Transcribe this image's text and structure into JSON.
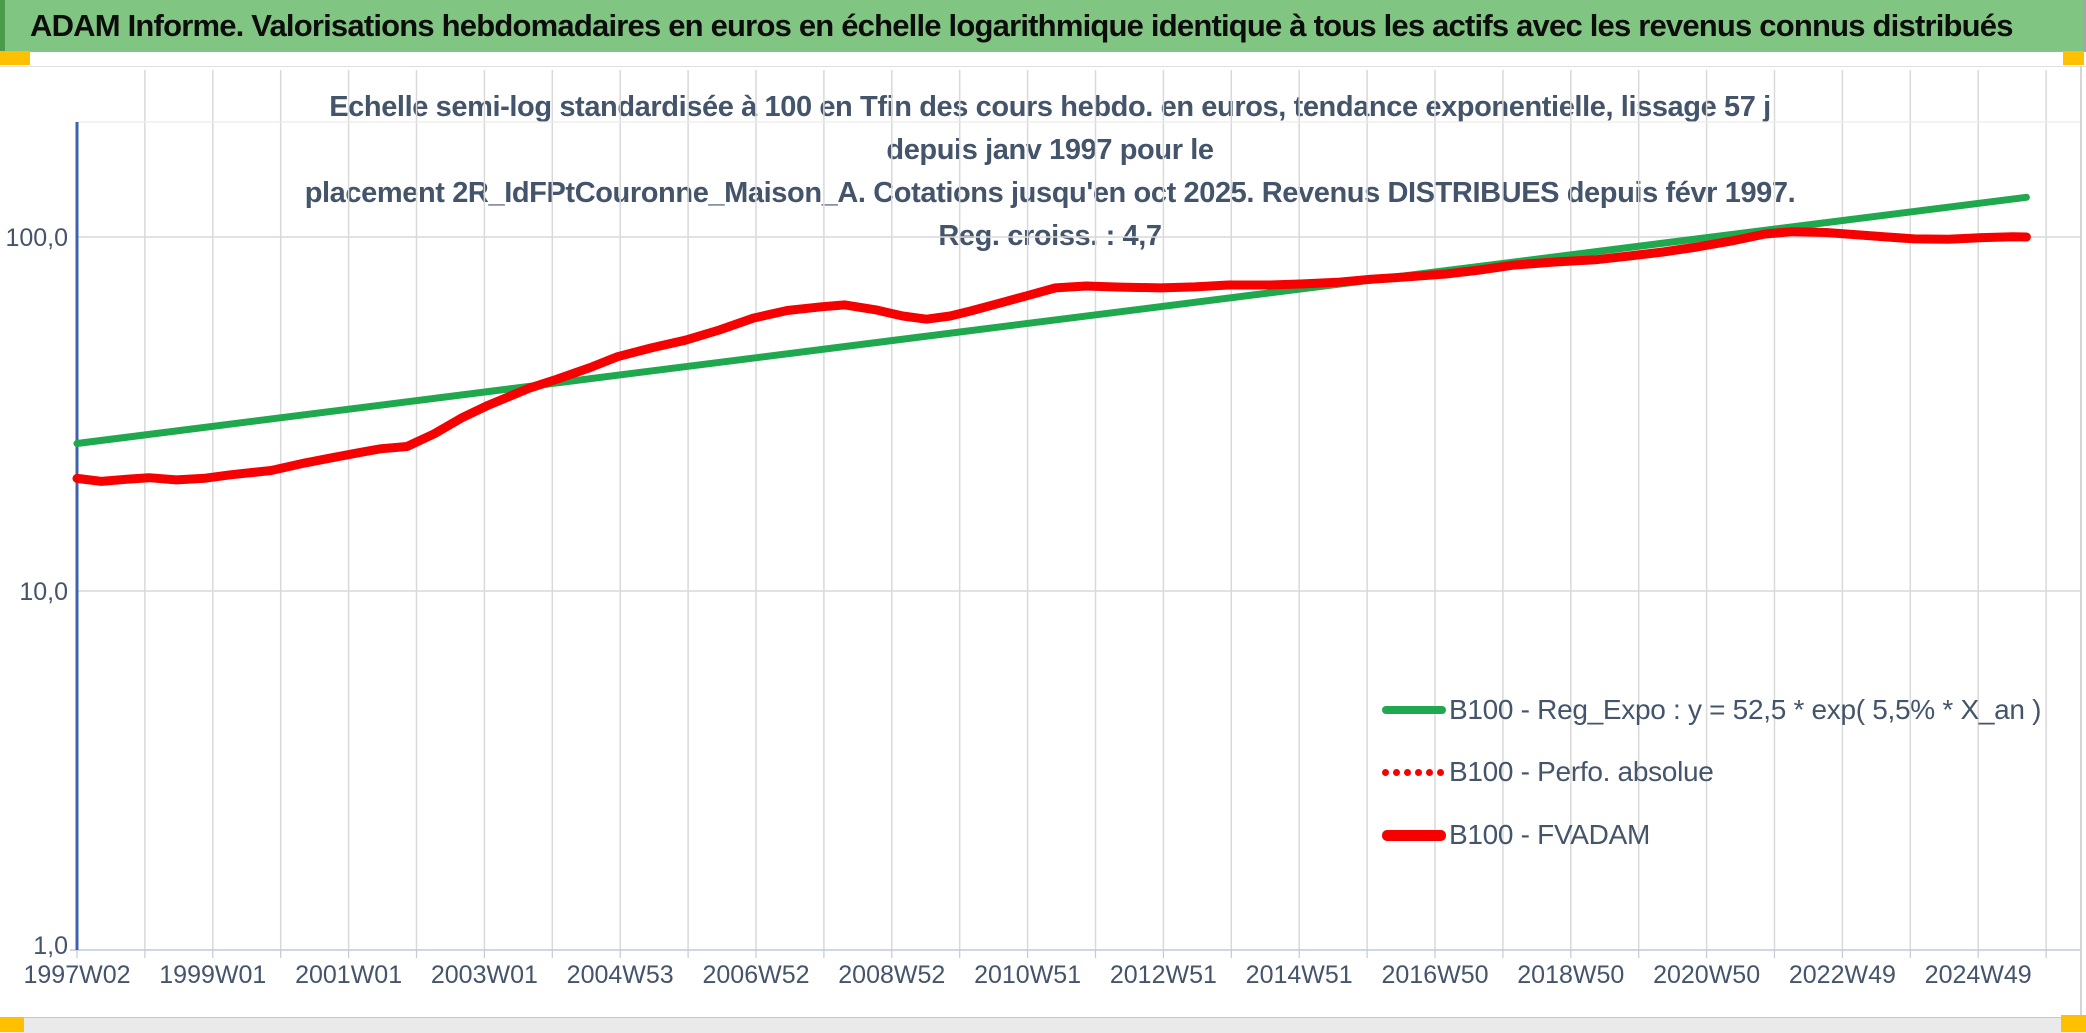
{
  "header": {
    "title": "ADAM Informe. Valorisations hebdomadaires en euros en échelle logarithmique identique à tous les actifs avec les revenus connus distribués"
  },
  "accents": {
    "header_green": "#80C581",
    "corner_orange": "#FFC000",
    "title_text": "#44546A",
    "axis_line_blue": "#3E63AE",
    "gridline_gray": "#D9D9D9",
    "series_green": "#1FA84D",
    "series_red": "#F60000"
  },
  "chart_data": {
    "type": "line",
    "title_line1": "Echelle semi-log standardisée à 100 en Tfin des cours hebdo. en euros, tendance exponentielle, lissage 57 j depuis janv 1997 pour le",
    "title_line2": "placement 2R_IdFPtCouronne_Maison_A. Cotations jusqu'en oct 2025. Revenus DISTRIBUES depuis févr 1997. Reg. croiss. : 4,7",
    "x_axis": {
      "labels": [
        "1997W02",
        "1999W01",
        "2001W01",
        "2003W01",
        "2004W53",
        "2006W52",
        "2008W52",
        "2010W51",
        "2012W51",
        "2014W51",
        "2016W50",
        "2018W50",
        "2020W50",
        "2022W49",
        "2024W49"
      ],
      "label_interval_years": 2,
      "gridlines": "yearly",
      "start_year": 1997.04,
      "end_year": 2025.75
    },
    "y_axis": {
      "scale": "log",
      "ticks": [
        {
          "label": "100,0",
          "value": 100
        },
        {
          "label": "10,0",
          "value": 10
        },
        {
          "label": "1,0",
          "value": 1
        }
      ],
      "range": [
        1,
        211
      ]
    },
    "legend_position": "inside-lower-right",
    "grid": true,
    "series": [
      {
        "name": "B100 - Reg_Expo : y = 52,5 * exp( 5,5% *  X_an )",
        "color": "#1FA84D",
        "style": "solid",
        "width": 7,
        "points": [
          [
            1997.04,
            26.1
          ],
          [
            2025.75,
            129.5
          ]
        ]
      },
      {
        "name": "B100 - Perfo. absolue",
        "color": "#F60000",
        "style": "dotted",
        "width": 9,
        "coincides_with": "B100 - FVADAM",
        "points": []
      },
      {
        "name": "B100 - FVADAM",
        "color": "#F60000",
        "style": "solid",
        "width": 9,
        "points": [
          [
            1997.04,
            20.8
          ],
          [
            1997.4,
            20.4
          ],
          [
            1997.8,
            20.7
          ],
          [
            1998.1,
            20.9
          ],
          [
            1998.5,
            20.6
          ],
          [
            1998.9,
            20.8
          ],
          [
            1999.3,
            21.3
          ],
          [
            1999.9,
            21.9
          ],
          [
            2000.4,
            23.0
          ],
          [
            2000.8,
            23.8
          ],
          [
            2001.2,
            24.6
          ],
          [
            2001.5,
            25.2
          ],
          [
            2001.9,
            25.6
          ],
          [
            2002.3,
            27.8
          ],
          [
            2002.7,
            30.8
          ],
          [
            2003.1,
            33.5
          ],
          [
            2003.7,
            37.4
          ],
          [
            2004.1,
            39.6
          ],
          [
            2004.6,
            42.8
          ],
          [
            2005.0,
            45.9
          ],
          [
            2005.5,
            48.6
          ],
          [
            2006.0,
            51.1
          ],
          [
            2006.5,
            54.6
          ],
          [
            2007.0,
            59.0
          ],
          [
            2007.5,
            62.0
          ],
          [
            2008.0,
            63.5
          ],
          [
            2008.35,
            64.3
          ],
          [
            2008.8,
            62.3
          ],
          [
            2009.2,
            59.8
          ],
          [
            2009.55,
            58.6
          ],
          [
            2009.9,
            59.8
          ],
          [
            2010.2,
            61.8
          ],
          [
            2010.6,
            64.8
          ],
          [
            2011.0,
            68.0
          ],
          [
            2011.45,
            71.8
          ],
          [
            2011.9,
            72.7
          ],
          [
            2012.4,
            72.2
          ],
          [
            2013.0,
            71.8
          ],
          [
            2013.5,
            72.3
          ],
          [
            2014.0,
            73.2
          ],
          [
            2014.6,
            73.2
          ],
          [
            2015.1,
            73.7
          ],
          [
            2015.6,
            74.5
          ],
          [
            2016.1,
            76.0
          ],
          [
            2016.6,
            77.1
          ],
          [
            2017.2,
            78.6
          ],
          [
            2017.7,
            80.7
          ],
          [
            2018.2,
            83.3
          ],
          [
            2018.8,
            85.0
          ],
          [
            2019.4,
            86.2
          ],
          [
            2019.9,
            88.4
          ],
          [
            2020.4,
            90.7
          ],
          [
            2020.9,
            93.7
          ],
          [
            2021.4,
            97.4
          ],
          [
            2021.9,
            102.0
          ],
          [
            2022.3,
            103.5
          ],
          [
            2022.8,
            103.0
          ],
          [
            2023.3,
            101.3
          ],
          [
            2023.7,
            100.0
          ],
          [
            2024.1,
            98.8
          ],
          [
            2024.6,
            98.5
          ],
          [
            2025.1,
            99.6
          ],
          [
            2025.55,
            100.2
          ],
          [
            2025.75,
            100.0
          ]
        ]
      }
    ]
  }
}
